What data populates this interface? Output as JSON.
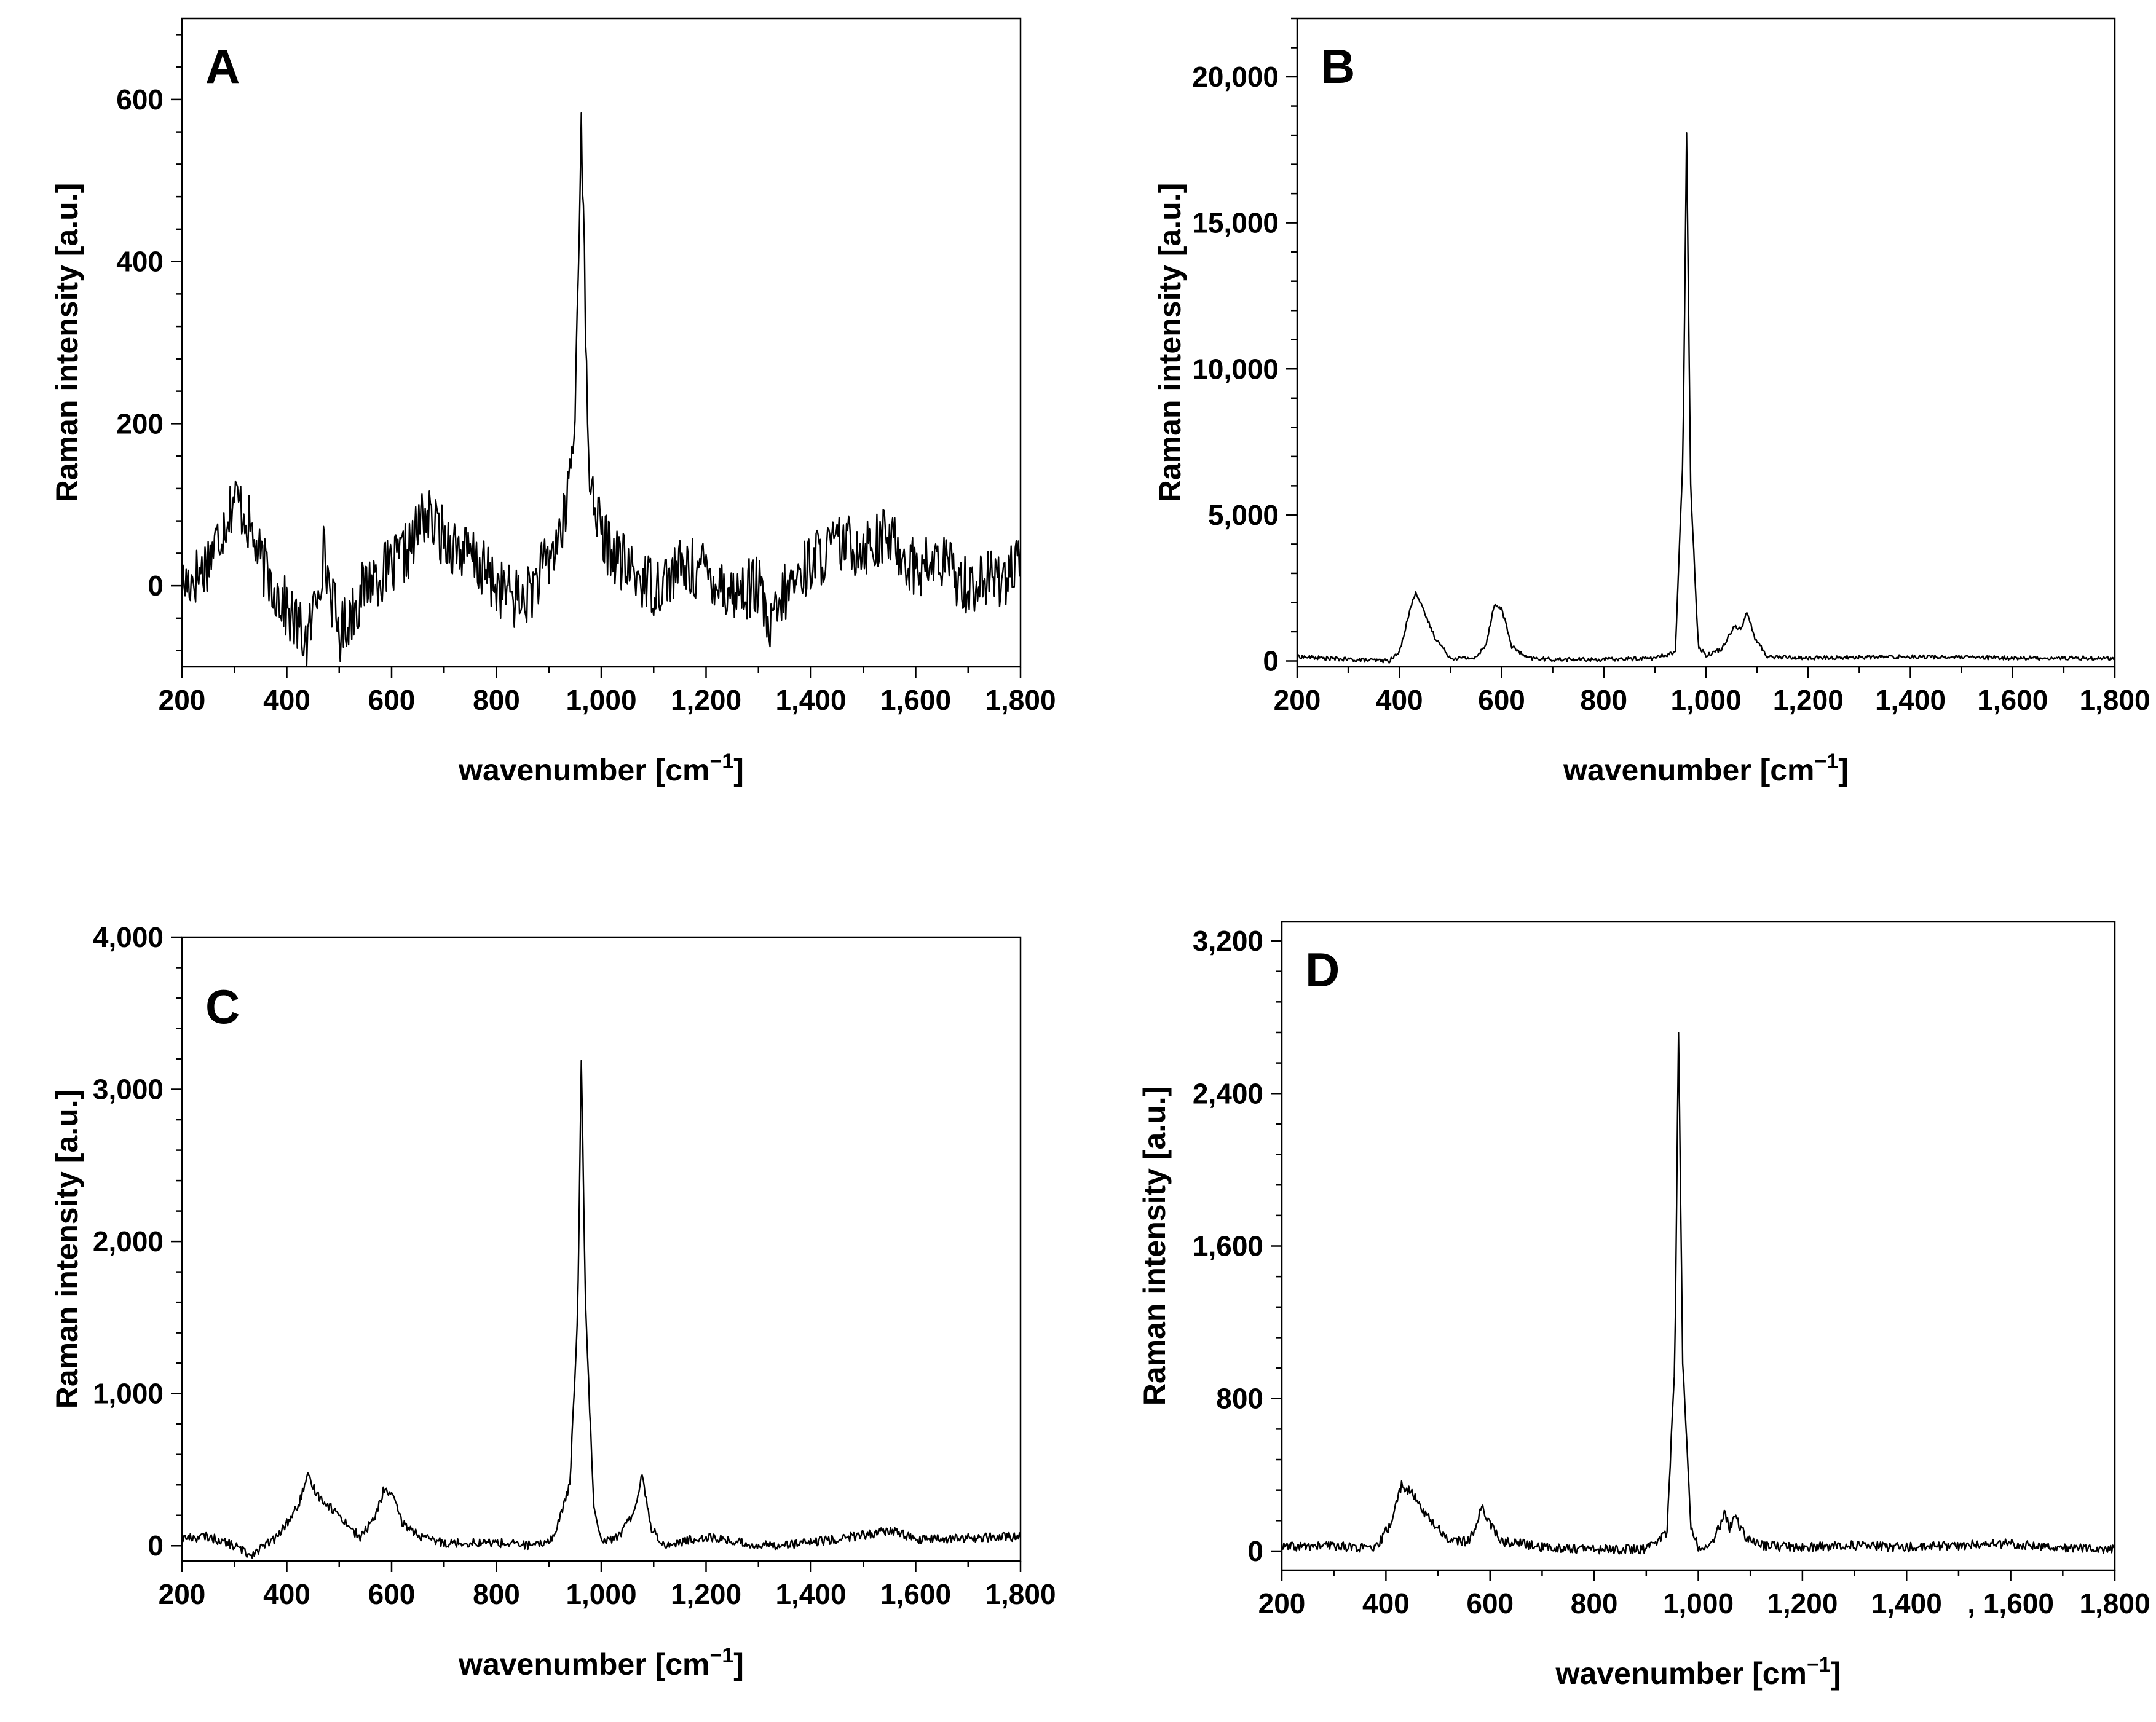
{
  "figure": {
    "x_title_main": "wavenumber [cm",
    "x_title_sup": "−1",
    "x_title_end": "]",
    "y_title": "Raman intensity [a.u.]"
  },
  "chart_data": [
    {
      "type": "line",
      "panel": "A",
      "xlim": [
        200,
        1800
      ],
      "ylim": [
        -100,
        700
      ],
      "x_ticks": [
        200,
        400,
        600,
        800,
        1000,
        1200,
        1400,
        1600,
        1800
      ],
      "x_tick_labels": [
        "200",
        "400",
        "600",
        "800",
        "1,000",
        "1,200",
        "1,400",
        "1,600",
        "1,800"
      ],
      "y_ticks": [
        0,
        200,
        400,
        600
      ],
      "y_tick_labels": [
        "0",
        "200",
        "400",
        "600"
      ],
      "noise_amplitude": 38,
      "series": [
        {
          "x": [
            200,
            240,
            270,
            300,
            320,
            350,
            400,
            440,
            470,
            500,
            560,
            600,
            640,
            660,
            700,
            760,
            800,
            850,
            900,
            930,
            950,
            962,
            975,
            1000,
            1050,
            1100,
            1150,
            1200,
            1250,
            1300,
            1320,
            1350,
            1400,
            1450,
            1500,
            1550,
            1600,
            1650,
            1700,
            1750,
            1800
          ],
          "y": [
            0,
            20,
            60,
            110,
            90,
            30,
            -30,
            -70,
            40,
            -60,
            10,
            20,
            50,
            90,
            60,
            30,
            0,
            -20,
            30,
            80,
            200,
            590,
            150,
            60,
            20,
            0,
            20,
            20,
            -10,
            0,
            -60,
            -10,
            30,
            50,
            50,
            60,
            20,
            30,
            0,
            10,
            20
          ]
        }
      ]
    },
    {
      "type": "line",
      "panel": "B",
      "xlim": [
        200,
        1800
      ],
      "ylim": [
        -200,
        22000
      ],
      "x_ticks": [
        200,
        400,
        600,
        800,
        1000,
        1200,
        1400,
        1600,
        1800
      ],
      "x_tick_labels": [
        "200",
        "400",
        "600",
        "800",
        "1,000",
        "1,200",
        "1,400",
        "1,600",
        "1,800"
      ],
      "y_ticks": [
        0,
        5000,
        10000,
        15000,
        20000
      ],
      "y_tick_labels": [
        "0",
        "5,000",
        "10,000",
        "15,000",
        "20,000"
      ],
      "noise_amplitude": 70,
      "series": [
        {
          "x": [
            200,
            300,
            380,
            400,
            420,
            432,
            445,
            470,
            500,
            550,
            570,
            585,
            600,
            620,
            650,
            700,
            800,
            900,
            940,
            955,
            962,
            970,
            985,
            1000,
            1030,
            1055,
            1070,
            1080,
            1095,
            1120,
            1200,
            1400,
            1600,
            1800
          ],
          "y": [
            150,
            50,
            0,
            300,
            1700,
            2400,
            1800,
            800,
            100,
            100,
            600,
            1900,
            1800,
            500,
            100,
            50,
            50,
            100,
            300,
            7000,
            18100,
            6000,
            500,
            200,
            400,
            1200,
            1100,
            1700,
            800,
            150,
            100,
            150,
            100,
            100
          ]
        }
      ]
    },
    {
      "type": "line",
      "panel": "C",
      "xlim": [
        200,
        1800
      ],
      "ylim": [
        -100,
        4000
      ],
      "x_ticks": [
        200,
        400,
        600,
        800,
        1000,
        1200,
        1400,
        1600,
        1800
      ],
      "x_tick_labels": [
        "200",
        "400",
        "600",
        "800",
        "1,000",
        "1,200",
        "1,400",
        "1,600",
        "1,800"
      ],
      "y_ticks": [
        0,
        1000,
        2000,
        3000,
        4000
      ],
      "y_tick_labels": [
        "0",
        "1,000",
        "2,000",
        "3,000",
        "4,000"
      ],
      "noise_amplitude": 30,
      "series": [
        {
          "x": [
            200,
            250,
            300,
            330,
            380,
            420,
            440,
            460,
            500,
            540,
            570,
            585,
            600,
            620,
            660,
            700,
            800,
            880,
            910,
            940,
            955,
            962,
            970,
            985,
            1000,
            1030,
            1060,
            1078,
            1095,
            1120,
            1200,
            1300,
            1400,
            1560,
            1600,
            1700,
            1800
          ],
          "y": [
            50,
            60,
            0,
            -60,
            50,
            250,
            450,
            330,
            200,
            50,
            200,
            370,
            340,
            150,
            50,
            20,
            20,
            0,
            60,
            400,
            1500,
            3200,
            1600,
            300,
            40,
            50,
            200,
            470,
            120,
            0,
            60,
            0,
            20,
            100,
            40,
            50,
            60
          ]
        }
      ]
    },
    {
      "type": "line",
      "panel": "D",
      "xlim": [
        200,
        1800
      ],
      "ylim": [
        -100,
        3300
      ],
      "x_ticks": [
        200,
        400,
        600,
        800,
        1000,
        1200,
        1400,
        1600,
        1800
      ],
      "x_tick_labels": [
        "200",
        "400",
        "600",
        "800",
        "1,000",
        "1,200",
        "1,400",
        ", 1,600",
        "1,800"
      ],
      "y_ticks": [
        0,
        800,
        1600,
        2400,
        3200
      ],
      "y_tick_labels": [
        "0",
        "800",
        "1,600",
        "2,400",
        "3,200"
      ],
      "noise_amplitude": 25,
      "series": [
        {
          "x": [
            200,
            300,
            380,
            410,
            430,
            450,
            480,
            520,
            560,
            585,
            600,
            620,
            660,
            700,
            800,
            900,
            940,
            955,
            962,
            970,
            985,
            1000,
            1030,
            1050,
            1060,
            1070,
            1090,
            1120,
            1200,
            1300,
            1400,
            1500,
            1600,
            1700,
            1800
          ],
          "y": [
            20,
            30,
            10,
            150,
            350,
            300,
            180,
            60,
            50,
            230,
            150,
            50,
            40,
            20,
            10,
            10,
            100,
            1000,
            2730,
            1000,
            150,
            20,
            50,
            200,
            120,
            180,
            80,
            30,
            20,
            30,
            20,
            30,
            40,
            20,
            10
          ]
        }
      ]
    }
  ]
}
